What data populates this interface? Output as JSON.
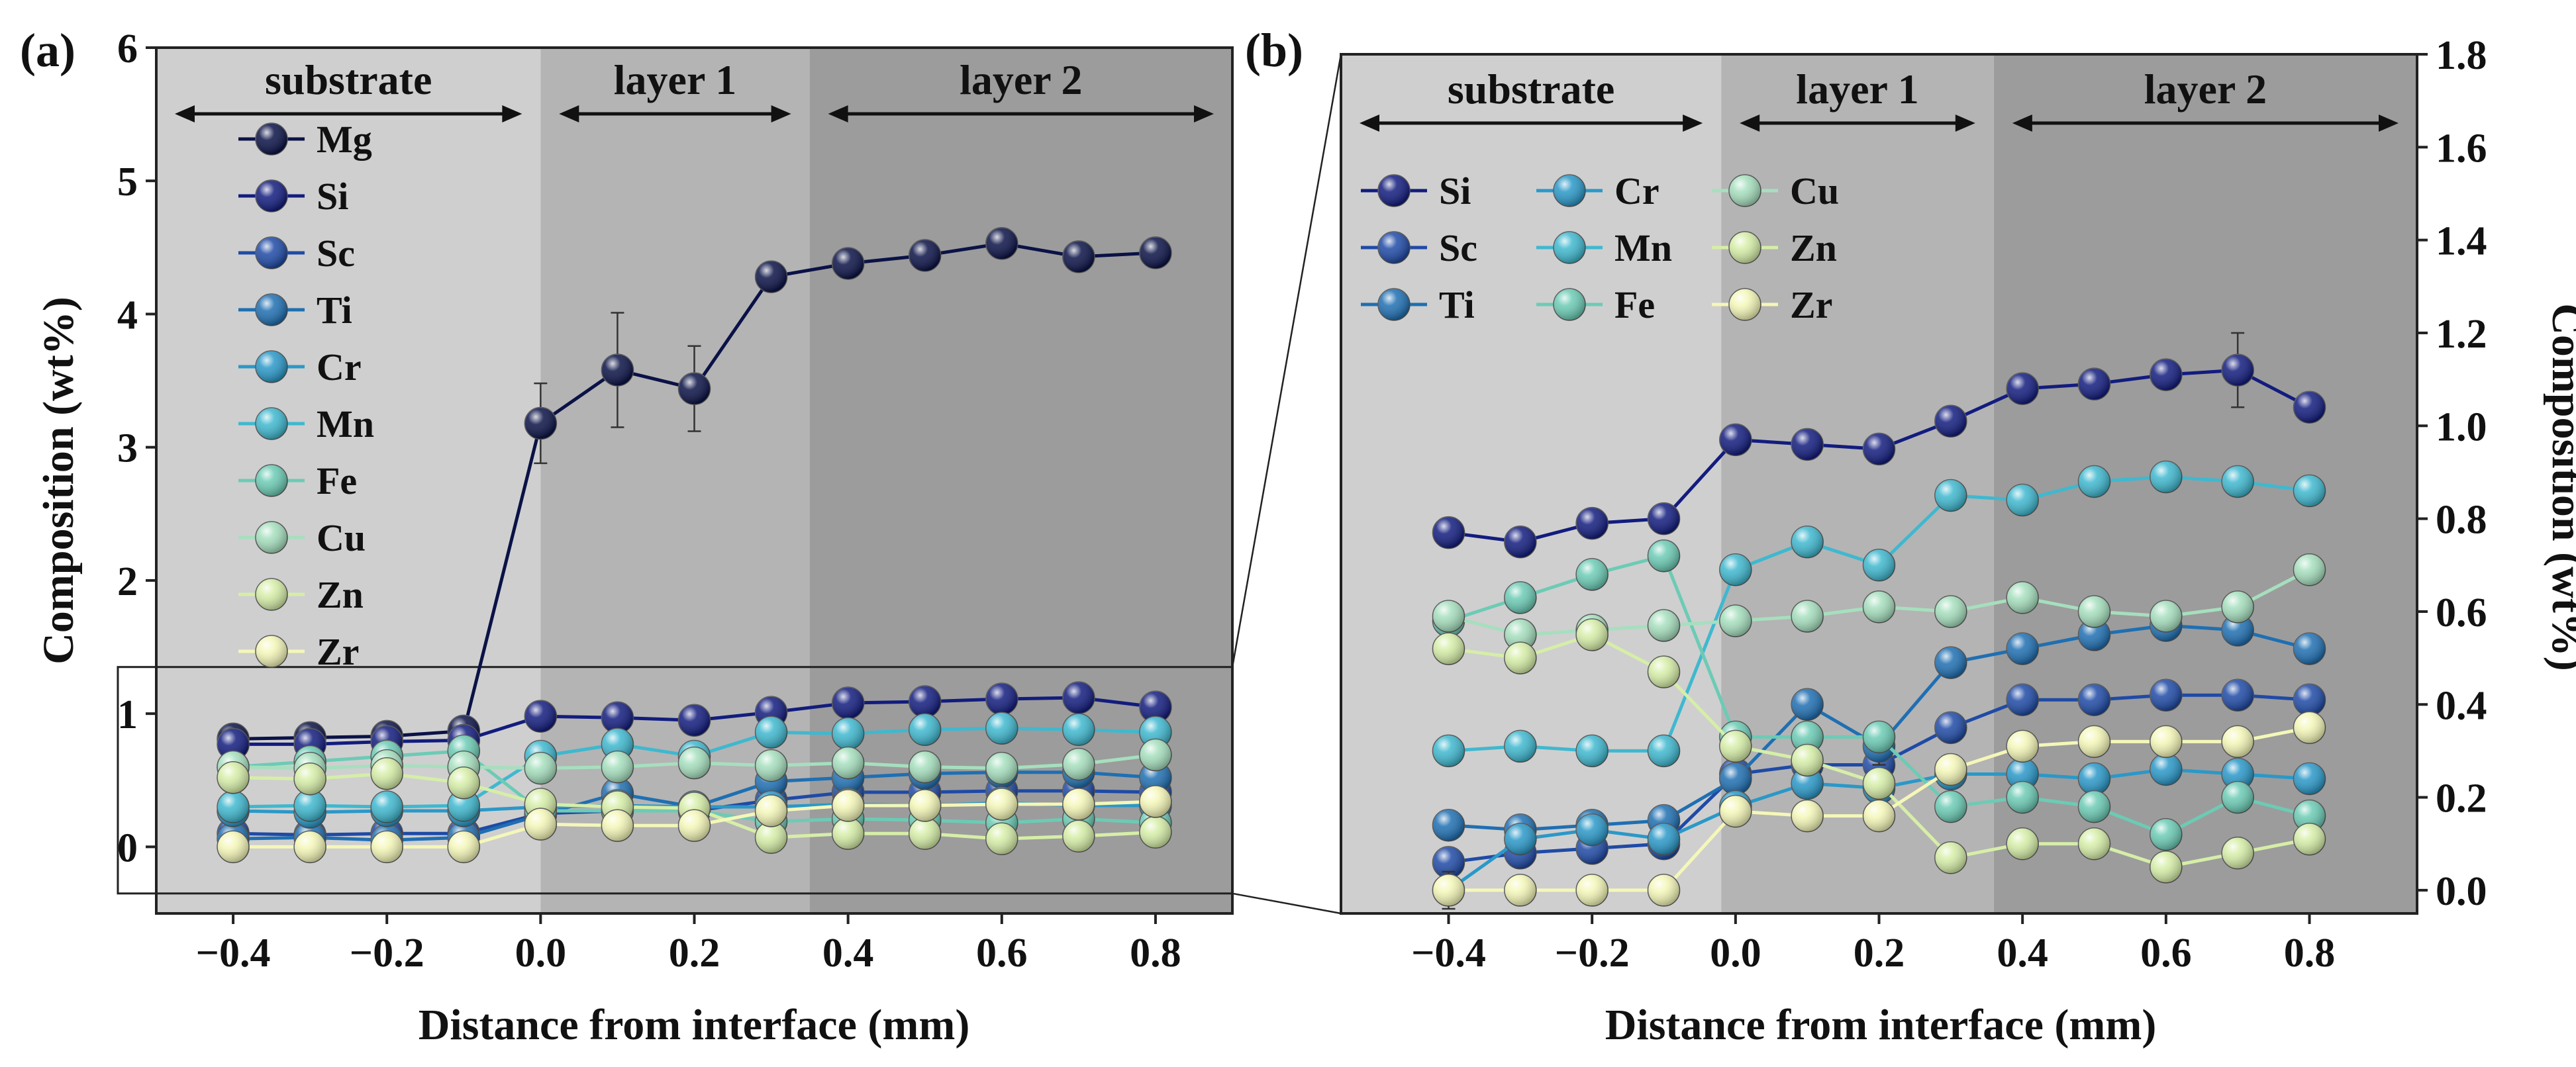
{
  "chart_data": [
    {
      "panel_label": "(a)",
      "type": "line",
      "xlabel": "Distance from interface (mm)",
      "ylabel": "Composition (wt%)",
      "xlim": [
        -0.5,
        0.9
      ],
      "ylim": [
        -0.5,
        6
      ],
      "xticks": [
        "-0.4",
        "-0.2",
        "0.0",
        "0.2",
        "0.4",
        "0.6",
        "0.8"
      ],
      "yticks": [
        "0",
        "1",
        "2",
        "3",
        "4",
        "5",
        "6"
      ],
      "regions": [
        {
          "label": "substrate",
          "from": -0.5,
          "to": -0.0,
          "shade": "#cfcfcf"
        },
        {
          "label": "layer 1",
          "from": -0.0,
          "to": 0.35,
          "shade": "#b4b4b4"
        },
        {
          "label": "layer 2",
          "from": 0.35,
          "to": 0.9,
          "shade": "#9c9c9c"
        }
      ],
      "x": [
        -0.4,
        -0.3,
        -0.2,
        -0.1,
        0.0,
        0.1,
        0.2,
        0.3,
        0.4,
        0.5,
        0.6,
        0.7,
        0.8
      ],
      "series": [
        {
          "name": "Mg",
          "color": "#0a1246",
          "values": [
            0.81,
            0.82,
            0.83,
            0.87,
            3.18,
            3.58,
            3.44,
            4.28,
            4.38,
            4.44,
            4.53,
            4.43,
            4.46
          ],
          "errors": [
            0.05,
            0.05,
            0.05,
            0.05,
            0.3,
            0.43,
            0.32,
            0.08,
            0.06,
            0.06,
            0.08,
            0.06,
            0.05
          ]
        },
        {
          "name": "Si",
          "color": "#121c7e",
          "values": [
            0.77,
            0.77,
            0.79,
            0.8,
            0.98,
            0.97,
            0.95,
            1.01,
            1.08,
            1.09,
            1.11,
            1.12,
            1.05
          ],
          "errors": [
            0.02,
            0.02,
            0.02,
            0.02,
            0.03,
            0.03,
            0.03,
            0.03,
            0.03,
            0.03,
            0.03,
            0.08,
            0.03
          ]
        },
        {
          "name": "Sc",
          "color": "#1f4aa6",
          "values": [
            0.1,
            0.09,
            0.1,
            0.1,
            0.25,
            0.27,
            0.27,
            0.35,
            0.41,
            0.41,
            0.42,
            0.42,
            0.41
          ],
          "errors": [
            0.02,
            0.02,
            0.02,
            0.02,
            0.02,
            0.02,
            0.02,
            0.02,
            0.02,
            0.02,
            0.02,
            0.02,
            0.02
          ]
        },
        {
          "name": "Ti",
          "color": "#1f6fb2",
          "values": [
            0.06,
            0.07,
            0.05,
            0.07,
            0.24,
            0.4,
            0.3,
            0.49,
            0.52,
            0.55,
            0.56,
            0.56,
            0.52
          ],
          "errors": [
            0.02,
            0.02,
            0.02,
            0.02,
            0.02,
            0.03,
            0.03,
            0.03,
            0.03,
            0.03,
            0.03,
            0.03,
            0.03
          ]
        },
        {
          "name": "Cr",
          "color": "#2a98c8",
          "values": [
            0.27,
            0.26,
            0.27,
            0.27,
            0.3,
            0.31,
            0.3,
            0.3,
            0.32,
            0.31,
            0.33,
            0.31,
            0.31
          ],
          "errors": [
            0.02,
            0.02,
            0.02,
            0.02,
            0.02,
            0.02,
            0.02,
            0.02,
            0.02,
            0.02,
            0.02,
            0.02,
            0.02
          ]
        },
        {
          "name": "Mn",
          "color": "#3fb8cf",
          "values": [
            0.3,
            0.31,
            0.3,
            0.31,
            0.68,
            0.77,
            0.68,
            0.86,
            0.85,
            0.88,
            0.89,
            0.88,
            0.86
          ],
          "errors": [
            0.02,
            0.02,
            0.02,
            0.02,
            0.03,
            0.03,
            0.03,
            0.03,
            0.03,
            0.03,
            0.03,
            0.03,
            0.03
          ]
        },
        {
          "name": "Fe",
          "color": "#6ccbb5",
          "values": [
            0.6,
            0.64,
            0.68,
            0.72,
            0.27,
            0.27,
            0.27,
            0.19,
            0.21,
            0.2,
            0.18,
            0.21,
            0.18
          ],
          "errors": [
            0.02,
            0.02,
            0.02,
            0.02,
            0.02,
            0.02,
            0.02,
            0.02,
            0.02,
            0.02,
            0.02,
            0.02,
            0.02
          ]
        },
        {
          "name": "Cu",
          "color": "#a6dfbe",
          "values": [
            0.6,
            0.59,
            0.61,
            0.6,
            0.59,
            0.6,
            0.63,
            0.61,
            0.63,
            0.6,
            0.59,
            0.62,
            0.69
          ],
          "errors": [
            0.02,
            0.02,
            0.02,
            0.02,
            0.02,
            0.02,
            0.02,
            0.02,
            0.02,
            0.02,
            0.02,
            0.02,
            0.02
          ]
        },
        {
          "name": "Zn",
          "color": "#d6eea8",
          "values": [
            0.52,
            0.51,
            0.55,
            0.48,
            0.32,
            0.3,
            0.29,
            0.07,
            0.1,
            0.1,
            0.06,
            0.08,
            0.11
          ],
          "errors": [
            0.02,
            0.02,
            0.02,
            0.02,
            0.02,
            0.02,
            0.02,
            0.02,
            0.02,
            0.02,
            0.02,
            0.02,
            0.02
          ]
        },
        {
          "name": "Zr",
          "color": "#f4f7b8",
          "values": [
            0.0,
            0.0,
            0.0,
            0.0,
            0.17,
            0.16,
            0.16,
            0.27,
            0.31,
            0.31,
            0.32,
            0.32,
            0.34
          ],
          "errors": [
            0.02,
            0.02,
            0.02,
            0.02,
            0.02,
            0.02,
            0.02,
            0.02,
            0.02,
            0.02,
            0.02,
            0.02,
            0.02
          ]
        }
      ],
      "zoom_box": {
        "x": [
          -0.55,
          0.9
        ],
        "y": [
          -0.35,
          1.35
        ]
      },
      "legend": "left, single column"
    },
    {
      "panel_label": "(b)",
      "type": "line",
      "xlabel": "Distance from interface (mm)",
      "ylabel": "Composition (wt%)",
      "ylabel_side": "right",
      "xlim": [
        -0.55,
        0.95
      ],
      "ylim": [
        -0.05,
        1.8
      ],
      "xticks": [
        "-0.4",
        "-0.2",
        "0.0",
        "0.2",
        "0.4",
        "0.6",
        "0.8"
      ],
      "yticks": [
        "0.0",
        "0.2",
        "0.4",
        "0.6",
        "0.8",
        "1.0",
        "1.2",
        "1.4",
        "1.6",
        "1.8"
      ],
      "regions": [
        {
          "label": "substrate",
          "from": -0.55,
          "to": -0.02,
          "shade": "#cfcfcf"
        },
        {
          "label": "layer 1",
          "from": -0.02,
          "to": 0.36,
          "shade": "#b4b4b4"
        },
        {
          "label": "layer 2",
          "from": 0.36,
          "to": 0.95,
          "shade": "#9c9c9c"
        }
      ],
      "x": [
        -0.4,
        -0.3,
        -0.2,
        -0.1,
        0.0,
        0.1,
        0.2,
        0.3,
        0.4,
        0.5,
        0.6,
        0.7,
        0.8
      ],
      "series": [
        {
          "name": "Si",
          "color": "#121c7e",
          "values": [
            0.77,
            0.75,
            0.79,
            0.8,
            0.97,
            0.96,
            0.95,
            1.01,
            1.08,
            1.09,
            1.11,
            1.12,
            1.04
          ],
          "errors": [
            0.02,
            0.02,
            0.02,
            0.02,
            0.02,
            0.02,
            0.03,
            0.02,
            0.02,
            0.02,
            0.02,
            0.08,
            0.02
          ]
        },
        {
          "name": "Sc",
          "color": "#1f4aa6",
          "values": [
            0.06,
            0.08,
            0.09,
            0.1,
            0.25,
            0.27,
            0.27,
            0.35,
            0.41,
            0.41,
            0.42,
            0.42,
            0.41
          ],
          "errors": [
            0.02,
            0.02,
            0.02,
            0.02,
            0.02,
            0.02,
            0.02,
            0.02,
            0.02,
            0.02,
            0.02,
            0.02,
            0.02
          ]
        },
        {
          "name": "Ti",
          "color": "#1f6fb2",
          "values": [
            0.14,
            0.13,
            0.14,
            0.15,
            0.24,
            0.4,
            0.31,
            0.49,
            0.52,
            0.55,
            0.57,
            0.56,
            0.52
          ],
          "errors": [
            0.02,
            0.02,
            0.02,
            0.02,
            0.02,
            0.03,
            0.04,
            0.02,
            0.02,
            0.02,
            0.02,
            0.02,
            0.02
          ]
        },
        {
          "name": "Cr",
          "color": "#2a98c8",
          "values": [
            0.0,
            0.11,
            0.13,
            0.11,
            0.18,
            0.23,
            0.22,
            0.25,
            0.25,
            0.24,
            0.26,
            0.25,
            0.24
          ],
          "errors": [
            0.04,
            0.02,
            0.02,
            0.02,
            0.02,
            0.02,
            0.02,
            0.02,
            0.02,
            0.02,
            0.02,
            0.02,
            0.02
          ]
        },
        {
          "name": "Mn",
          "color": "#3fb8cf",
          "values": [
            0.3,
            0.31,
            0.3,
            0.3,
            0.69,
            0.75,
            0.7,
            0.85,
            0.84,
            0.88,
            0.89,
            0.88,
            0.86
          ],
          "errors": [
            0.02,
            0.02,
            0.02,
            0.02,
            0.02,
            0.02,
            0.02,
            0.02,
            0.02,
            0.02,
            0.02,
            0.02,
            0.02
          ]
        },
        {
          "name": "Fe",
          "color": "#6ccbb5",
          "values": [
            0.58,
            0.63,
            0.68,
            0.72,
            0.33,
            0.33,
            0.33,
            0.18,
            0.2,
            0.18,
            0.12,
            0.2,
            0.16
          ],
          "errors": [
            0.02,
            0.02,
            0.02,
            0.02,
            0.02,
            0.02,
            0.02,
            0.02,
            0.02,
            0.02,
            0.02,
            0.02,
            0.02
          ]
        },
        {
          "name": "Cu",
          "color": "#a6dfbe",
          "values": [
            0.59,
            0.55,
            0.56,
            0.57,
            0.58,
            0.59,
            0.61,
            0.6,
            0.63,
            0.6,
            0.59,
            0.61,
            0.69
          ],
          "errors": [
            0.02,
            0.02,
            0.02,
            0.02,
            0.02,
            0.02,
            0.02,
            0.02,
            0.02,
            0.02,
            0.02,
            0.02,
            0.02
          ]
        },
        {
          "name": "Zn",
          "color": "#d6eea8",
          "values": [
            0.52,
            0.5,
            0.55,
            0.47,
            0.31,
            0.28,
            0.23,
            0.07,
            0.1,
            0.1,
            0.05,
            0.08,
            0.11
          ],
          "errors": [
            0.02,
            0.02,
            0.02,
            0.02,
            0.02,
            0.02,
            0.02,
            0.02,
            0.02,
            0.02,
            0.03,
            0.02,
            0.02
          ]
        },
        {
          "name": "Zr",
          "color": "#f4f7b8",
          "values": [
            0.0,
            0.0,
            0.0,
            0.0,
            0.17,
            0.16,
            0.16,
            0.26,
            0.31,
            0.32,
            0.32,
            0.32,
            0.35
          ],
          "errors": [
            0.02,
            0.02,
            0.02,
            0.02,
            0.02,
            0.02,
            0.02,
            0.02,
            0.02,
            0.02,
            0.02,
            0.02,
            0.02
          ]
        }
      ],
      "legend": "upper-left, three columns"
    }
  ]
}
